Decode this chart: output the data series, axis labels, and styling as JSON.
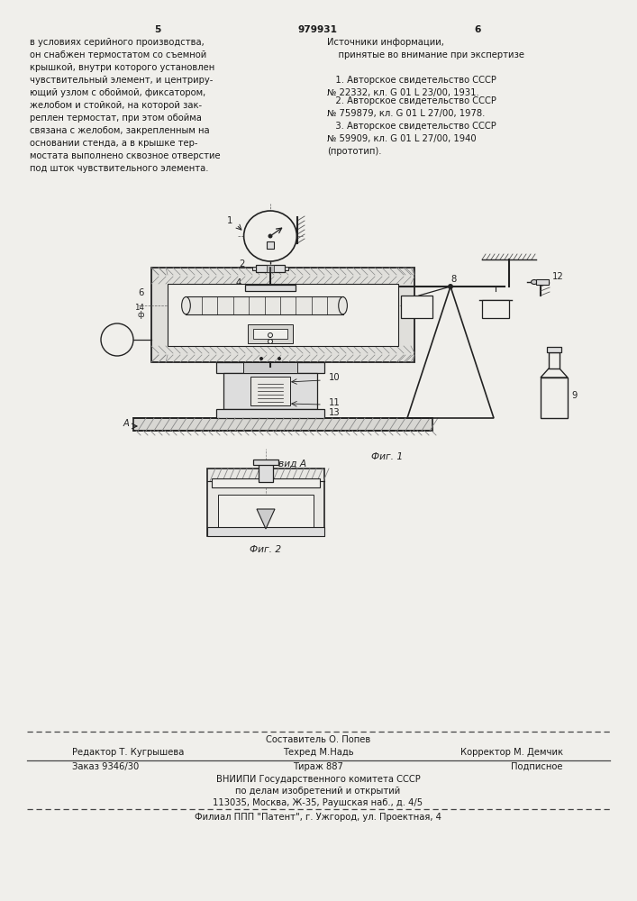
{
  "bg_color": "#f0efeb",
  "page_number_left": "5",
  "page_number_center": "979931",
  "page_number_right": "6",
  "left_text": "в условиях серийного производства,\nон снабжен термостатом со съемной\nкрышкой, внутри которого установлен\nчувствительный элемент, и центриру-\nющий узлом с обоймой, фиксатором,\nжелобом и стойкой, на которой зак-\nреплен термостат, при этом обойма\nсвязана с желобом, закрепленным на\nосновании стенда, а в крышке тер-\nмостата выполнено сквозное отверстие\nпод шток чувствительного элемента.",
  "right_title": "Источники информации,\n    принятые во внимание при экспертизе",
  "right_ref1": "   1. Авторское свидетельство СССР\n№ 22332, кл. G 01 L 23/00, 1931.",
  "right_ref2": "   2. Авторское свидетельство СССР\n№ 759879, кл. G 01 L 27/00, 1978.\n   3. Авторское свидетельство СССР\n№ 59909, кл. G 01 L 27/00, 1940\n(прототип).",
  "fig1_caption": "Фиг. 1",
  "fig2_caption": "Фиг. 2",
  "view_label": "вид А",
  "bottom_sostavitel": "Составитель О. Попев",
  "bottom_redaktor": "Редактор Т. Кугрышева",
  "bottom_tekhred": "Техред М.Надь",
  "bottom_korrektor": "Корректор М. Демчик",
  "bottom_order": "Заказ 9346/30",
  "bottom_tirazh": "Тираж 887",
  "bottom_podp": "Подписное",
  "bottom_vniip1": "ВНИИПИ Государственного комитета СССР",
  "bottom_vniip2": "по делам изобретений и открытий",
  "bottom_vniip3": "113035, Москва, Ж-35, Раушская наб., д. 4/5",
  "bottom_filial": "Филиал ППП \"Патент\", г. Ужгород, ул. Проектная, 4"
}
